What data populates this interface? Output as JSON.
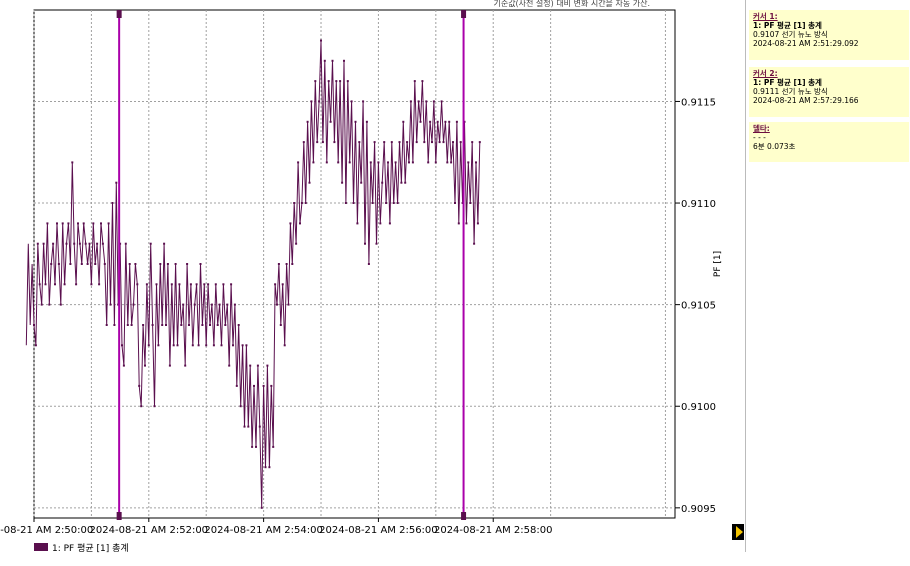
{
  "header_note": "기준값(사전 설정) 대비 변화 시간을 자동 가산.",
  "chart_data": {
    "type": "line",
    "ylabel": "PF [1]",
    "ylim": [
      0.90945,
      0.91195
    ],
    "yticks": [
      0.9095,
      0.91,
      0.9105,
      0.911,
      0.9115
    ],
    "ytick_labels": [
      "0.9095",
      "0.9100",
      "0.9105",
      "0.9110",
      "0.9115"
    ],
    "xlim_seconds": [
      0,
      670
    ],
    "xtick_labels": [
      "2024-08-21 AM 2:50:00",
      "2024-08-21 AM 2:52:00",
      "2024-08-21 AM 2:54:00",
      "2024-08-21 AM 2:56:00",
      "2024-08-21 AM 2:58:00"
    ],
    "xticks_seconds": [
      0,
      120,
      240,
      360,
      480
    ],
    "grid": true,
    "series_color": "#5a0f4e",
    "cursor_color": "#aa00aa",
    "cursors_seconds": [
      89,
      449
    ],
    "series": [
      {
        "name": "1: PF 평균 [1] 총계",
        "start_time": "2024-08-21 AM 2:49:52",
        "interval_seconds": 2,
        "values": [
          0.9103,
          0.9108,
          0.9104,
          0.9107,
          0.9104,
          0.9103,
          0.9108,
          0.9106,
          0.9105,
          0.9108,
          0.9106,
          0.9109,
          0.9105,
          0.9107,
          0.9108,
          0.9106,
          0.9109,
          0.9107,
          0.9105,
          0.9109,
          0.9106,
          0.9108,
          0.9109,
          0.9107,
          0.9112,
          0.9108,
          0.9106,
          0.9109,
          0.9108,
          0.9107,
          0.9109,
          0.9108,
          0.9107,
          0.9108,
          0.9106,
          0.9109,
          0.9107,
          0.9108,
          0.9106,
          0.9109,
          0.9108,
          0.9107,
          0.9104,
          0.9109,
          0.9105,
          0.911,
          0.9104,
          0.9111,
          0.9105,
          0.9108,
          0.9103,
          0.9102,
          0.9108,
          0.9104,
          0.9107,
          0.9104,
          0.9105,
          0.9107,
          0.9106,
          0.9101,
          0.91,
          0.9104,
          0.9102,
          0.9106,
          0.9103,
          0.9108,
          0.9104,
          0.91,
          0.9106,
          0.9103,
          0.9107,
          0.9104,
          0.9108,
          0.9104,
          0.9107,
          0.9102,
          0.9106,
          0.9103,
          0.9107,
          0.9103,
          0.9106,
          0.9104,
          0.9105,
          0.9102,
          0.9107,
          0.9104,
          0.9106,
          0.9103,
          0.9105,
          0.9106,
          0.9103,
          0.9107,
          0.9104,
          0.9106,
          0.9103,
          0.9106,
          0.9104,
          0.9105,
          0.9103,
          0.9106,
          0.9104,
          0.9105,
          0.9103,
          0.9106,
          0.9104,
          0.9105,
          0.9102,
          0.9106,
          0.9103,
          0.9105,
          0.9101,
          0.9104,
          0.91,
          0.9103,
          0.9099,
          0.9103,
          0.9099,
          0.9102,
          0.9098,
          0.9101,
          0.9098,
          0.9102,
          0.9099,
          0.9095,
          0.9101,
          0.9097,
          0.9102,
          0.9097,
          0.9101,
          0.9098,
          0.9106,
          0.9105,
          0.9107,
          0.9104,
          0.9106,
          0.9103,
          0.9107,
          0.9105,
          0.9109,
          0.9107,
          0.911,
          0.9108,
          0.9112,
          0.9109,
          0.911,
          0.9113,
          0.911,
          0.9114,
          0.9111,
          0.9115,
          0.9112,
          0.9116,
          0.9113,
          0.9115,
          0.9118,
          0.9113,
          0.9117,
          0.9112,
          0.9116,
          0.9114,
          0.9117,
          0.9113,
          0.9116,
          0.9112,
          0.9116,
          0.9111,
          0.9117,
          0.911,
          0.9116,
          0.9112,
          0.9115,
          0.911,
          0.9114,
          0.9109,
          0.9113,
          0.9111,
          0.9115,
          0.9108,
          0.9114,
          0.9107,
          0.9112,
          0.911,
          0.9113,
          0.9108,
          0.9112,
          0.9109,
          0.9111,
          0.9113,
          0.911,
          0.9112,
          0.9109,
          0.9113,
          0.911,
          0.9112,
          0.911,
          0.9113,
          0.9111,
          0.9114,
          0.9111,
          0.9113,
          0.9112,
          0.9115,
          0.9112,
          0.9116,
          0.9113,
          0.9115,
          0.9114,
          0.9116,
          0.9113,
          0.9115,
          0.9112,
          0.9114,
          0.9113,
          0.9115,
          0.9112,
          0.9114,
          0.9113,
          0.9115,
          0.9113,
          0.9114,
          0.9112,
          0.9114,
          0.9112,
          0.9113,
          0.911,
          0.9114,
          0.9109,
          0.9113,
          0.911,
          0.9114,
          0.9109,
          0.9112,
          0.911,
          0.9113,
          0.9108,
          0.9112,
          0.9109,
          0.9113
        ]
      }
    ]
  },
  "cursor1": {
    "title": "커서 1:",
    "series": "1: PF 평균 [1] 총계",
    "value": "0.9107 선기 뉴노 방식",
    "time": "2024-08-21 AM 2:51:29.092"
  },
  "cursor2": {
    "title": "커서 2:",
    "series": "1: PF 평균 [1] 총계",
    "value": "0.9111 선기 뉴노 방식",
    "time": "2024-08-21 AM 2:57:29.166"
  },
  "delta": {
    "title": "델타:",
    "dash": "- - -",
    "value": "6분 0.073초"
  },
  "legend_label": "1: PF 평균 [1] 총계"
}
